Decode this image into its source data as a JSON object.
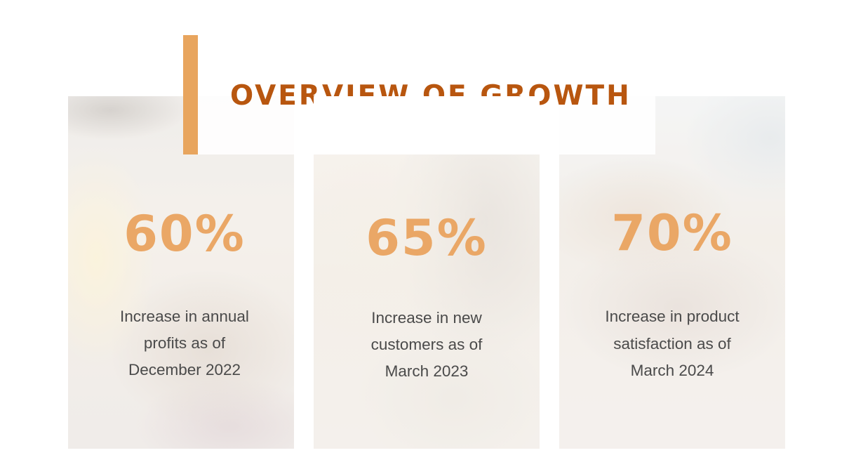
{
  "slide": {
    "title": "OVERVIEW OF GROWTH",
    "colors": {
      "accent_bar": "#e8a55e",
      "title": "#b8560f",
      "stat_value": "#eaa766",
      "body_text": "#4a4a4a"
    }
  },
  "stats": [
    {
      "value": "60%",
      "description": "Increase in annual profits as of December 2022"
    },
    {
      "value": "65%",
      "description": "Increase in new customers as of March 2023"
    },
    {
      "value": "70%",
      "description": "Increase in product satisfaction as of March 2024"
    }
  ]
}
